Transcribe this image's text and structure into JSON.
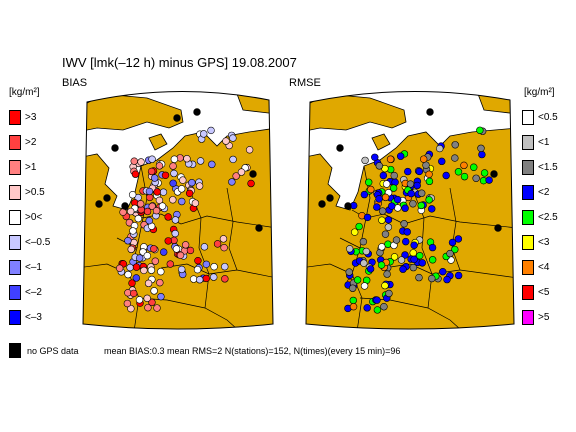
{
  "title": "IWV [lmk(–12 h) minus GPS] 19.08.2007",
  "panels": {
    "left": "BIAS",
    "right": "RMSE"
  },
  "units": {
    "left": "[kg/m²]",
    "right": "[kg/m²]"
  },
  "bias_legend": [
    {
      "label": ">3",
      "color": "#ff0000"
    },
    {
      "label": ">2",
      "color": "#ff4040"
    },
    {
      "label": ">1",
      "color": "#ff8080"
    },
    {
      "label": ">0.5",
      "color": "#ffc8c8"
    },
    {
      "label": ">0<",
      "color": "#ffffff"
    },
    {
      "label": "<–0.5",
      "color": "#c8c8ff"
    },
    {
      "label": "<–1",
      "color": "#8080ff"
    },
    {
      "label": "<–2",
      "color": "#4040ff"
    },
    {
      "label": "<–3",
      "color": "#0000ff"
    }
  ],
  "rmse_legend": [
    {
      "label": "<0.5",
      "color": "#ffffff"
    },
    {
      "label": "<1",
      "color": "#c0c0c0"
    },
    {
      "label": "<1.5",
      "color": "#808080"
    },
    {
      "label": "<2",
      "color": "#0000ff"
    },
    {
      "label": "<2.5",
      "color": "#00ff00"
    },
    {
      "label": "<3",
      "color": "#ffff00"
    },
    {
      "label": "<4",
      "color": "#ff8000"
    },
    {
      "label": "<5",
      "color": "#ff0000"
    },
    {
      "label": ">5",
      "color": "#ff00ff"
    }
  ],
  "no_gps_label": "no GPS data",
  "stats": "mean BIAS:0.3  mean RMS=2  N(stations)=152, N(times)(every 15 min)=96",
  "colors": {
    "land": "#e0a800",
    "sea": "#ffffff",
    "border": "#000000",
    "no_data": "#000000"
  }
}
